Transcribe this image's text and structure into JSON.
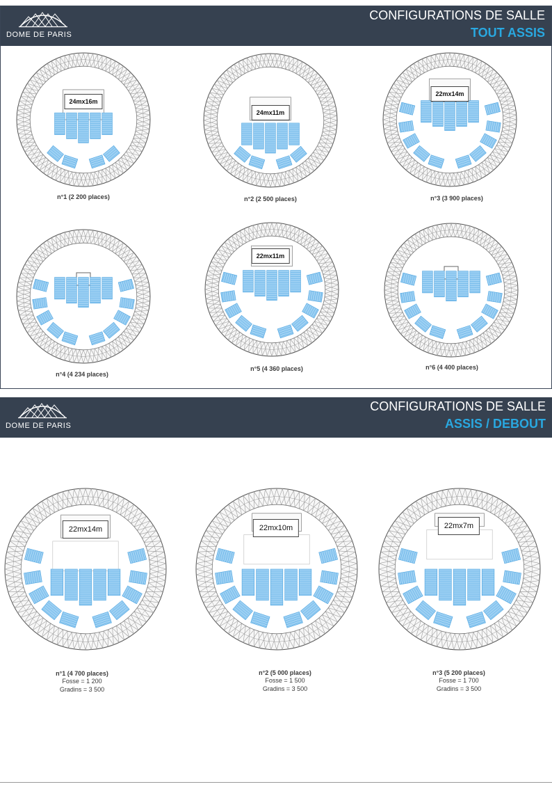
{
  "brand": {
    "name": "DOME DE PARIS",
    "logo_icon": "dome-lattice-icon"
  },
  "colors": {
    "header_bg": "#364150",
    "accent": "#29a8e0",
    "seat": "#9dd0f3",
    "seat_stroke": "#4aa3e0",
    "lattice": "#9a9a9a"
  },
  "section_tout_assis": {
    "title": "CONFIGURATIONS DE SALLE",
    "subtitle": "TOUT ASSIS",
    "plans": [
      {
        "stage": "24mx16m",
        "caption": "n°1  (2 200 places)"
      },
      {
        "stage": "24mx11m",
        "caption": "n°2 (2 500 places)"
      },
      {
        "stage": "22mx14m",
        "caption": "n°3 (3 900 places)"
      },
      {
        "stage": "",
        "caption": "n°4 (4 234 places)"
      },
      {
        "stage": "22mx11m",
        "caption": "n°5 (4 360 places)"
      },
      {
        "stage": "",
        "caption": "n°6 (4 400 places)"
      }
    ]
  },
  "section_assis_debout": {
    "title": "CONFIGURATIONS DE SALLE",
    "subtitle": "ASSIS / DEBOUT",
    "plans": [
      {
        "stage": "22mx14m",
        "caption": "n°1 (4 700 places)",
        "fosse": "Fosse = 1 200",
        "gradins": "Gradins = 3 500"
      },
      {
        "stage": "22mx10m",
        "caption": "n°2 (5 000 places)",
        "fosse": "Fosse = 1 500",
        "gradins": "Gradins = 3 500"
      },
      {
        "stage": "22mx7m",
        "caption": "n°3 (5 200 places)",
        "fosse": "Fosse = 1 700",
        "gradins": "Gradins = 3 500"
      }
    ]
  }
}
